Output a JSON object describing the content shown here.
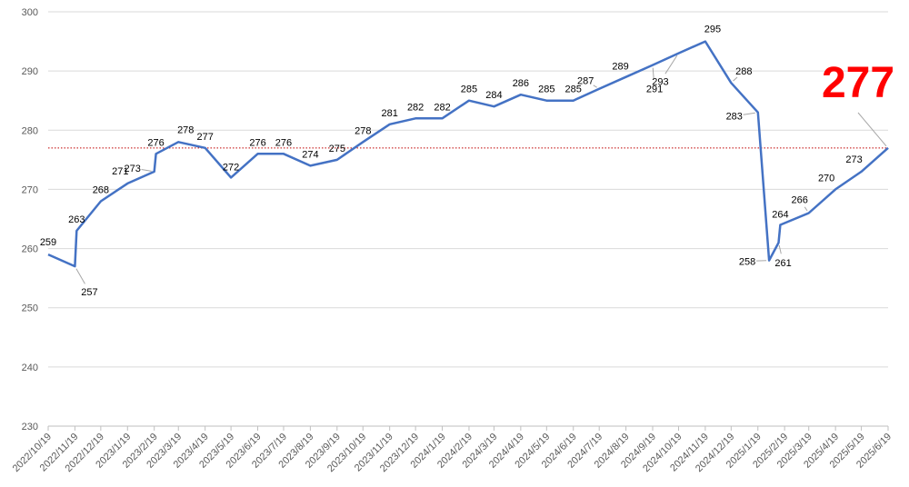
{
  "chart_data": {
    "type": "line",
    "title": "",
    "xlabel": "",
    "ylabel": "",
    "ylim": [
      230,
      300
    ],
    "yticks": [
      230,
      240,
      250,
      260,
      270,
      280,
      290,
      300
    ],
    "grid": true,
    "legend": "none",
    "colors": {
      "line": "#4472c4",
      "grid": "#d9d9d9",
      "reference": "#c00000",
      "latest": "#ff0000"
    },
    "reference_value": 277,
    "latest_value_label": "277",
    "xtick_labels": [
      "2022/10/19",
      "2022/11/19",
      "2022/12/19",
      "2023/1/19",
      "2023/2/19",
      "2023/3/19",
      "2023/4/19",
      "2023/5/19",
      "2023/6/19",
      "2023/7/19",
      "2023/8/19",
      "2023/9/19",
      "2023/10/19",
      "2023/11/19",
      "2023/12/19",
      "2024/1/19",
      "2024/2/19",
      "2024/3/19",
      "2024/4/19",
      "2024/5/19",
      "2024/6/19",
      "2024/7/19",
      "2024/8/19",
      "2024/9/19",
      "2024/10/19",
      "2024/11/19",
      "2024/12/19",
      "2025/1/19",
      "2025/2/19",
      "2025/3/19",
      "2025/4/19",
      "2025/5/19",
      "2025/6/19"
    ],
    "series": [
      {
        "x": [
          "2022/10/19",
          "2022/11/19",
          "2022/11/21",
          "2022/12/19",
          "2023/1/19",
          "2023/2/19",
          "2023/2/21",
          "2023/3/19",
          "2023/4/19",
          "2023/5/19",
          "2023/6/19",
          "2023/7/19",
          "2023/8/19",
          "2023/9/19",
          "2023/10/19",
          "2023/11/19",
          "2023/12/19",
          "2024/1/19",
          "2024/2/19",
          "2024/3/19",
          "2024/4/19",
          "2024/5/19",
          "2024/6/19",
          "2024/7/19",
          "2024/8/19",
          "2024/9/19",
          "2024/10/19",
          "2024/11/19",
          "2024/12/19",
          "2025/1/19",
          "2025/2/1",
          "2025/2/12",
          "2025/2/14",
          "2025/3/19",
          "2025/4/19",
          "2025/5/19",
          "2025/6/19"
        ],
        "values": [
          259,
          257,
          263,
          268,
          271,
          273,
          276,
          278,
          277,
          272,
          276,
          276,
          274,
          275,
          278,
          281,
          282,
          282,
          285,
          284,
          286,
          285,
          285,
          287,
          289,
          291,
          293,
          295,
          288,
          283,
          258,
          261,
          264,
          266,
          270,
          273,
          277
        ]
      }
    ],
    "data_labels": [
      "259",
      "257",
      "263",
      "268",
      "271",
      "273",
      "276",
      "278",
      "277",
      "272",
      "276",
      "276",
      "274",
      "275",
      "278",
      "281",
      "282",
      "282",
      "285",
      "284",
      "286",
      "285",
      "285",
      "287",
      "289",
      "291",
      "293",
      "295",
      "288",
      "283",
      "258",
      "261",
      "264",
      "266",
      "270",
      "273"
    ]
  }
}
